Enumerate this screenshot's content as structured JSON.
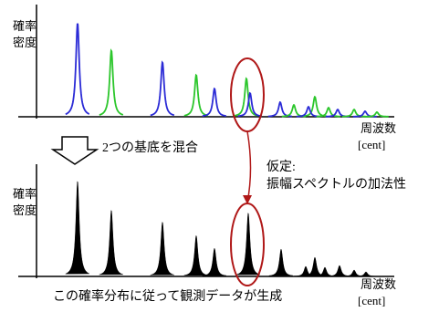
{
  "top_panel": {
    "y_label_lines": [
      "確率",
      "密度"
    ],
    "x_label_lines": [
      "周波数",
      "[cent]"
    ]
  },
  "arrow_label": "2つの基底を混合",
  "annotation_lines": [
    "仮定:",
    "振幅スペクトルの加法性"
  ],
  "bottom_panel": {
    "y_label_lines": [
      "確率",
      "密度"
    ],
    "x_label_lines": [
      "周波数",
      "[cent]"
    ]
  },
  "caption": "この確率分布に従って観測データが生成"
}
